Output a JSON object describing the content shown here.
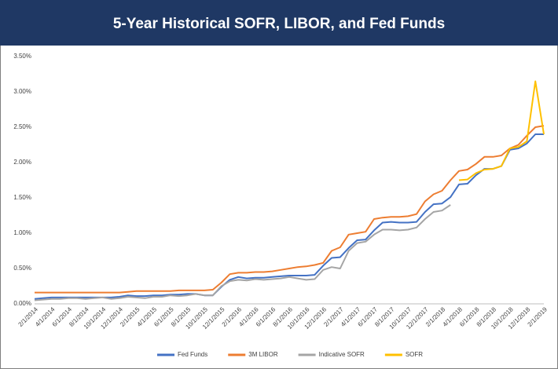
{
  "chart_data": {
    "type": "line",
    "title": "5-Year Historical SOFR, LIBOR, and Fed Funds",
    "categories": [
      "2/1/2014",
      null,
      "4/1/2014",
      null,
      "6/1/2014",
      null,
      "8/1/2014",
      null,
      "10/1/2014",
      null,
      "12/1/2014",
      null,
      "2/1/2015",
      null,
      "4/1/2015",
      null,
      "6/1/2015",
      null,
      "8/1/2015",
      null,
      "10/1/2015",
      null,
      "12/1/2015",
      null,
      "2/1/2016",
      null,
      "4/1/2016",
      null,
      "6/1/2016",
      null,
      "8/1/2016",
      null,
      "10/1/2016",
      null,
      "12/1/2016",
      null,
      "2/1/2017",
      null,
      "4/1/2017",
      null,
      "6/1/2017",
      null,
      "8/1/2017",
      null,
      "10/1/2017",
      null,
      "12/1/2017",
      null,
      "2/1/2018",
      null,
      "4/1/2018",
      null,
      "6/1/2018",
      null,
      "8/1/2018",
      null,
      "10/1/2018",
      null,
      "12/1/2018",
      null,
      "2/1/2019"
    ],
    "series": [
      {
        "name": "Fed Funds",
        "color": "#4472c4",
        "values": [
          0.07,
          0.08,
          0.09,
          0.09,
          0.09,
          0.09,
          0.09,
          0.09,
          0.09,
          0.09,
          0.1,
          0.12,
          0.11,
          0.11,
          0.12,
          0.12,
          0.13,
          0.13,
          0.14,
          0.14,
          0.12,
          0.12,
          0.24,
          0.34,
          0.38,
          0.36,
          0.37,
          0.37,
          0.38,
          0.39,
          0.4,
          0.4,
          0.4,
          0.41,
          0.54,
          0.65,
          0.66,
          0.79,
          0.9,
          0.91,
          1.04,
          1.15,
          1.16,
          1.15,
          1.15,
          1.16,
          1.3,
          1.41,
          1.42,
          1.51,
          1.69,
          1.7,
          1.82,
          1.91,
          1.91,
          1.95,
          2.18,
          2.2,
          2.27,
          2.4,
          2.4
        ]
      },
      {
        "name": "3M LIBOR",
        "color": "#ed7d31",
        "values": [
          0.16,
          0.16,
          0.16,
          0.16,
          0.16,
          0.16,
          0.16,
          0.16,
          0.16,
          0.16,
          0.16,
          0.17,
          0.18,
          0.18,
          0.18,
          0.18,
          0.18,
          0.19,
          0.19,
          0.19,
          0.19,
          0.2,
          0.3,
          0.42,
          0.44,
          0.44,
          0.45,
          0.45,
          0.46,
          0.48,
          0.5,
          0.52,
          0.53,
          0.55,
          0.58,
          0.75,
          0.8,
          0.98,
          1.0,
          1.02,
          1.2,
          1.22,
          1.23,
          1.23,
          1.24,
          1.27,
          1.45,
          1.55,
          1.6,
          1.75,
          1.88,
          1.9,
          1.98,
          2.08,
          2.08,
          2.1,
          2.2,
          2.25,
          2.38,
          2.5,
          2.52
        ]
      },
      {
        "name": "Indicative SOFR",
        "color": "#a5a5a5",
        "values": [
          0.05,
          0.06,
          0.07,
          0.07,
          0.08,
          0.08,
          0.07,
          0.08,
          0.09,
          0.07,
          0.08,
          0.1,
          0.09,
          0.08,
          0.1,
          0.1,
          0.12,
          0.11,
          0.12,
          0.14,
          0.12,
          0.12,
          0.25,
          0.32,
          0.34,
          0.33,
          0.35,
          0.34,
          0.35,
          0.36,
          0.38,
          0.36,
          0.34,
          0.35,
          0.48,
          0.52,
          0.5,
          0.75,
          0.86,
          0.88,
          0.98,
          1.05,
          1.05,
          1.04,
          1.05,
          1.08,
          1.2,
          1.3,
          1.32,
          1.4,
          null,
          null,
          null,
          null,
          null,
          null,
          null,
          null,
          null,
          null,
          null
        ]
      },
      {
        "name": "SOFR",
        "color": "#ffc000",
        "values": [
          null,
          null,
          null,
          null,
          null,
          null,
          null,
          null,
          null,
          null,
          null,
          null,
          null,
          null,
          null,
          null,
          null,
          null,
          null,
          null,
          null,
          null,
          null,
          null,
          null,
          null,
          null,
          null,
          null,
          null,
          null,
          null,
          null,
          null,
          null,
          null,
          null,
          null,
          null,
          null,
          null,
          null,
          null,
          null,
          null,
          null,
          null,
          null,
          null,
          null,
          1.75,
          1.76,
          1.85,
          1.9,
          1.91,
          1.95,
          2.2,
          2.22,
          2.3,
          3.15,
          2.4
        ]
      }
    ],
    "ylim": [
      0,
      3.5
    ],
    "yticks": [
      {
        "value": 0,
        "label": "0.00%"
      },
      {
        "value": 0.5,
        "label": "0.50%"
      },
      {
        "value": 1,
        "label": "1.00%"
      },
      {
        "value": 1.5,
        "label": "1.50%"
      },
      {
        "value": 2,
        "label": "2.00%"
      },
      {
        "value": 2.5,
        "label": "2.50%"
      },
      {
        "value": 3,
        "label": "3.00%"
      },
      {
        "value": 3.5,
        "label": "3.50%"
      }
    ],
    "grid": false,
    "legend": "bottom"
  }
}
